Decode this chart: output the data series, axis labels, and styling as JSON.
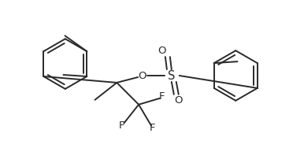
{
  "bg_color": "#ffffff",
  "line_color": "#2a2a2a",
  "lw": 1.4,
  "dbo": 0.008,
  "fs": 9.5,
  "fig_w": 3.86,
  "fig_h": 1.93,
  "xlim": [
    0,
    3.86
  ],
  "ylim": [
    0,
    1.93
  ]
}
